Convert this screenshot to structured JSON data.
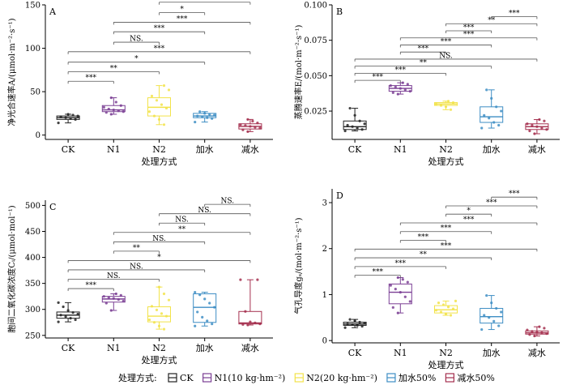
{
  "legend": {
    "title": "处理方式:",
    "items": [
      {
        "label": "CK",
        "color": "#222222"
      },
      {
        "label": "N1(10 kg·hm⁻²)",
        "color": "#7B3F94"
      },
      {
        "label": "N2(20 kg·hm⁻²)",
        "color": "#F2E34A"
      },
      {
        "label": "加水50%",
        "color": "#3E8EC4"
      },
      {
        "label": "减水50%",
        "color": "#A5304F"
      }
    ]
  },
  "chart_data": [
    {
      "type": "box",
      "panel_label": "A",
      "categories": [
        "CK",
        "N1",
        "N2",
        "加水",
        "减水"
      ],
      "colors": [
        "#222222",
        "#7B3F94",
        "#F2E34A",
        "#3E8EC4",
        "#A5304F"
      ],
      "xlabel": "处理方式",
      "ylabel": "净光合速率A/(μmol·m⁻²·s⁻¹)",
      "ylim": [
        -5,
        150
      ],
      "yticks": [
        0,
        50,
        100,
        150
      ],
      "yticklabels": [
        "0",
        "50",
        "100",
        "150"
      ],
      "boxes": [
        {
          "min": 14,
          "q1": 18,
          "median": 20,
          "q3": 22,
          "max": 24
        },
        {
          "min": 24,
          "q1": 27,
          "median": 29,
          "q3": 34,
          "max": 43
        },
        {
          "min": 12,
          "q1": 22,
          "median": 32,
          "q3": 43,
          "max": 57
        },
        {
          "min": 15,
          "q1": 20,
          "median": 22,
          "q3": 25,
          "max": 27
        },
        {
          "min": 4,
          "q1": 7,
          "median": 10,
          "q3": 13,
          "max": 18
        }
      ],
      "points": [
        [
          14,
          18,
          19,
          20,
          21,
          22,
          23,
          24
        ],
        [
          24,
          26,
          27,
          28,
          29,
          30,
          32,
          34,
          38,
          43
        ],
        [
          12,
          18,
          22,
          27,
          31,
          35,
          40,
          45,
          52,
          57
        ],
        [
          15,
          19,
          20,
          21,
          22,
          23,
          24,
          25,
          27
        ],
        [
          4,
          6,
          8,
          9,
          10,
          11,
          12,
          14,
          16,
          18
        ]
      ],
      "significance": [
        {
          "from": 0,
          "to": 1,
          "label": "***",
          "y": 62
        },
        {
          "from": 0,
          "to": 2,
          "label": "**",
          "y": 73
        },
        {
          "from": 0,
          "to": 3,
          "label": "*",
          "y": 84
        },
        {
          "from": 0,
          "to": 4,
          "label": "***",
          "y": 96
        },
        {
          "from": 1,
          "to": 2,
          "label": "NS.",
          "y": 107
        },
        {
          "from": 1,
          "to": 3,
          "label": "***",
          "y": 119
        },
        {
          "from": 1,
          "to": 4,
          "label": "***",
          "y": 130
        },
        {
          "from": 2,
          "to": 3,
          "label": "*",
          "y": 141
        },
        {
          "from": 2,
          "to": 4,
          "label": "***",
          "y": 153
        },
        {
          "from": 3,
          "to": 4,
          "label": "***",
          "y": 164
        }
      ]
    },
    {
      "type": "box",
      "panel_label": "B",
      "categories": [
        "CK",
        "N1",
        "N2",
        "加水",
        "减水"
      ],
      "colors": [
        "#222222",
        "#7B3F94",
        "#F2E34A",
        "#3E8EC4",
        "#A5304F"
      ],
      "xlabel": "处理方式",
      "ylabel": "蒸腾速率E/(mol·m⁻²·s⁻¹)",
      "ylim": [
        0.005,
        0.1
      ],
      "yticks": [
        0.025,
        0.05,
        0.075,
        0.1
      ],
      "yticklabels": [
        "0.025",
        "0.050",
        "0.075",
        "0.100"
      ],
      "boxes": [
        {
          "min": 0.011,
          "q1": 0.012,
          "median": 0.014,
          "q3": 0.018,
          "max": 0.027
        },
        {
          "min": 0.037,
          "q1": 0.039,
          "median": 0.041,
          "q3": 0.043,
          "max": 0.045
        },
        {
          "min": 0.026,
          "q1": 0.029,
          "median": 0.03,
          "q3": 0.031,
          "max": 0.032
        },
        {
          "min": 0.013,
          "q1": 0.017,
          "median": 0.021,
          "q3": 0.028,
          "max": 0.04
        },
        {
          "min": 0.009,
          "q1": 0.012,
          "median": 0.014,
          "q3": 0.016,
          "max": 0.019
        }
      ],
      "points": [
        [
          0.011,
          0.012,
          0.013,
          0.014,
          0.015,
          0.016,
          0.018,
          0.022,
          0.027
        ],
        [
          0.037,
          0.038,
          0.039,
          0.04,
          0.041,
          0.042,
          0.043,
          0.044,
          0.045
        ],
        [
          0.026,
          0.028,
          0.029,
          0.03,
          0.031,
          0.032
        ],
        [
          0.013,
          0.015,
          0.017,
          0.02,
          0.022,
          0.025,
          0.028,
          0.034,
          0.04
        ],
        [
          0.009,
          0.011,
          0.012,
          0.013,
          0.014,
          0.015,
          0.016,
          0.018,
          0.019
        ]
      ],
      "significance": [
        {
          "from": 0,
          "to": 1,
          "label": "***",
          "y": 0.0467
        },
        {
          "from": 0,
          "to": 2,
          "label": "***",
          "y": 0.0517
        },
        {
          "from": 0,
          "to": 3,
          "label": "**",
          "y": 0.0567
        },
        {
          "from": 0,
          "to": 4,
          "label": "NS.",
          "y": 0.0617
        },
        {
          "from": 1,
          "to": 2,
          "label": "***",
          "y": 0.0667
        },
        {
          "from": 1,
          "to": 3,
          "label": "***",
          "y": 0.0717
        },
        {
          "from": 1,
          "to": 4,
          "label": "***",
          "y": 0.0767
        },
        {
          "from": 2,
          "to": 3,
          "label": "***",
          "y": 0.0817
        },
        {
          "from": 2,
          "to": 4,
          "label": "**",
          "y": 0.0867
        },
        {
          "from": 3,
          "to": 4,
          "label": "***",
          "y": 0.0917
        }
      ]
    },
    {
      "type": "box",
      "panel_label": "C",
      "categories": [
        "CK",
        "N1",
        "N2",
        "加水",
        "减水"
      ],
      "colors": [
        "#222222",
        "#7B3F94",
        "#F2E34A",
        "#3E8EC4",
        "#A5304F"
      ],
      "xlabel": "处理方式",
      "ylabel": "胞间二氧化碳浓度Cᵢ/(μmol·mol⁻¹)",
      "ylim": [
        245,
        510
      ],
      "yticks": [
        250,
        300,
        350,
        400,
        450,
        500
      ],
      "yticklabels": [
        "250",
        "300",
        "350",
        "400",
        "450",
        "500"
      ],
      "boxes": [
        {
          "min": 276,
          "q1": 283,
          "median": 289,
          "q3": 295,
          "max": 313
        },
        {
          "min": 298,
          "q1": 314,
          "median": 320,
          "q3": 325,
          "max": 330
        },
        {
          "min": 262,
          "q1": 276,
          "median": 287,
          "q3": 305,
          "max": 343
        },
        {
          "min": 268,
          "q1": 275,
          "median": 304,
          "q3": 330,
          "max": 333
        },
        {
          "min": 270,
          "q1": 272,
          "median": 274,
          "q3": 296,
          "max": 357
        }
      ],
      "points": [
        [
          276,
          280,
          283,
          286,
          289,
          291,
          294,
          298,
          305,
          313
        ],
        [
          298,
          312,
          316,
          319,
          321,
          323,
          325,
          327,
          330
        ],
        [
          262,
          268,
          275,
          280,
          287,
          292,
          299,
          306,
          318,
          330,
          343
        ],
        [
          268,
          272,
          278,
          285,
          295,
          304,
          312,
          320,
          328,
          333
        ],
        [
          270,
          271,
          272,
          274,
          276,
          296,
          357,
          357
        ]
      ],
      "significance": [
        {
          "from": 0,
          "to": 1,
          "label": "***",
          "y": 340
        },
        {
          "from": 0,
          "to": 2,
          "label": "NS.",
          "y": 358
        },
        {
          "from": 0,
          "to": 3,
          "label": "NS.",
          "y": 376
        },
        {
          "from": 0,
          "to": 4,
          "label": "*",
          "y": 394
        },
        {
          "from": 1,
          "to": 2,
          "label": "**",
          "y": 412
        },
        {
          "from": 1,
          "to": 3,
          "label": "NS.",
          "y": 430
        },
        {
          "from": 1,
          "to": 4,
          "label": "**",
          "y": 448
        },
        {
          "from": 2,
          "to": 3,
          "label": "NS.",
          "y": 466
        },
        {
          "from": 2,
          "to": 4,
          "label": "NS.",
          "y": 484
        },
        {
          "from": 3,
          "to": 4,
          "label": "NS.",
          "y": 502
        }
      ]
    },
    {
      "type": "box",
      "panel_label": "D",
      "categories": [
        "CK",
        "N1",
        "N2",
        "加水",
        "减水"
      ],
      "colors": [
        "#222222",
        "#7B3F94",
        "#F2E34A",
        "#3E8EC4",
        "#A5304F"
      ],
      "xlabel": "处理方式",
      "ylabel": "气孔导度gₛ/(mol·m⁻²·s⁻¹)",
      "ylim": [
        -0.05,
        3.3
      ],
      "yticks": [
        0,
        1,
        2,
        3
      ],
      "yticklabels": [
        "0",
        "1",
        "2",
        "3"
      ],
      "boxes": [
        {
          "min": 0.28,
          "q1": 0.33,
          "median": 0.36,
          "q3": 0.4,
          "max": 0.46
        },
        {
          "min": 0.6,
          "q1": 0.8,
          "median": 1.05,
          "q3": 1.23,
          "max": 1.37
        },
        {
          "min": 0.55,
          "q1": 0.6,
          "median": 0.67,
          "q3": 0.76,
          "max": 0.86
        },
        {
          "min": 0.24,
          "q1": 0.38,
          "median": 0.52,
          "q3": 0.7,
          "max": 0.98
        },
        {
          "min": 0.1,
          "q1": 0.14,
          "median": 0.17,
          "q3": 0.21,
          "max": 0.3
        }
      ],
      "points": [
        [
          0.28,
          0.31,
          0.33,
          0.35,
          0.36,
          0.38,
          0.4,
          0.43,
          0.46
        ],
        [
          0.6,
          0.72,
          0.85,
          0.95,
          1.05,
          1.12,
          1.2,
          1.27,
          1.33,
          1.37
        ],
        [
          0.55,
          0.58,
          0.62,
          0.66,
          0.69,
          0.73,
          0.78,
          0.82,
          0.86
        ],
        [
          0.24,
          0.32,
          0.42,
          0.5,
          0.55,
          0.62,
          0.7,
          0.82,
          0.98
        ],
        [
          0.1,
          0.13,
          0.15,
          0.17,
          0.18,
          0.2,
          0.23,
          0.27,
          0.3
        ]
      ],
      "significance": [
        {
          "from": 0,
          "to": 1,
          "label": "***",
          "y": 1.42
        },
        {
          "from": 0,
          "to": 2,
          "label": "***",
          "y": 1.61
        },
        {
          "from": 0,
          "to": 3,
          "label": "**",
          "y": 1.8
        },
        {
          "from": 0,
          "to": 4,
          "label": "***",
          "y": 1.99
        },
        {
          "from": 1,
          "to": 2,
          "label": "***",
          "y": 2.18
        },
        {
          "from": 1,
          "to": 3,
          "label": "***",
          "y": 2.37
        },
        {
          "from": 1,
          "to": 4,
          "label": "***",
          "y": 2.56
        },
        {
          "from": 2,
          "to": 3,
          "label": "*",
          "y": 2.75
        },
        {
          "from": 2,
          "to": 4,
          "label": "***",
          "y": 2.93
        },
        {
          "from": 3,
          "to": 4,
          "label": "***",
          "y": 3.12
        }
      ]
    }
  ]
}
